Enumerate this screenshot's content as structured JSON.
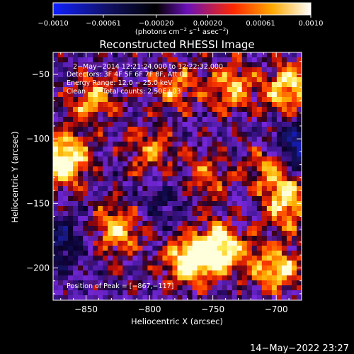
{
  "colorbar": {
    "ticks": [
      "−0.0010",
      "−0.00061",
      "−0.00020",
      "0.00020",
      "0.00061",
      "0.0010"
    ],
    "tick_values": [
      -0.001,
      -0.00061,
      -0.0002,
      0.0002,
      0.00061,
      0.001
    ],
    "units_prefix": "(photons cm",
    "units_exp1": "−2",
    "units_mid": " s",
    "units_exp2": "−1",
    "units_mid2": " asec",
    "units_exp3": "−2",
    "units_suffix": ")",
    "colors": [
      "#1020ff",
      "#000000",
      "#7a18c8",
      "#ff2800",
      "#ffb000",
      "#ffffc0"
    ]
  },
  "chart_data": {
    "type": "heatmap",
    "title": "Reconstructed RHESSI Image",
    "xlabel": "Heliocentric X (arcsec)",
    "ylabel": "Heliocentric Y (arcsec)",
    "xlim": [
      -876,
      -680
    ],
    "ylim": [
      -225,
      -33
    ],
    "x_ticks": [
      -850,
      -800,
      -750,
      -700
    ],
    "x_tick_labels": [
      "−850",
      "−800",
      "−750",
      "−700"
    ],
    "y_ticks": [
      -200,
      -150,
      -100,
      -50
    ],
    "y_tick_labels": [
      "−200",
      "−150",
      "−100",
      "−50"
    ],
    "color_range": [
      -0.001,
      0.001
    ],
    "hot_spots": [
      {
        "x": -867,
        "y": -117,
        "value": 0.001
      },
      {
        "x": -745,
        "y": -185,
        "value": 0.00095
      },
      {
        "x": -770,
        "y": -195,
        "value": 0.0008
      },
      {
        "x": -825,
        "y": -170,
        "value": 0.0007
      },
      {
        "x": -700,
        "y": -120,
        "value": 0.0008
      },
      {
        "x": -690,
        "y": -60,
        "value": 0.00075
      },
      {
        "x": -735,
        "y": -60,
        "value": 0.0006
      },
      {
        "x": -700,
        "y": -200,
        "value": 0.00075
      },
      {
        "x": -800,
        "y": -110,
        "value": 0.0005
      },
      {
        "x": -845,
        "y": -70,
        "value": 0.0006
      },
      {
        "x": -780,
        "y": -60,
        "value": 0.0005
      },
      {
        "x": -755,
        "y": -130,
        "value": 0.00045
      },
      {
        "x": -690,
        "y": -150,
        "value": 0.0007
      }
    ],
    "cold_spots": [
      {
        "x": -685,
        "y": -110,
        "value": -0.001
      },
      {
        "x": -870,
        "y": -180,
        "value": -0.0005
      },
      {
        "x": -790,
        "y": -150,
        "value": -0.0003
      }
    ]
  },
  "annotations": {
    "line1": "2−May−2014 12:21:24.000 to 12:22:32.000",
    "line2": "Detectors: 3F 4F 5F 6F 7F 8F, Att 0",
    "line3": "Energy Range: 12.0 − 25.0 keV",
    "line4a": "Clean",
    "line4b": "Total counts: 2.50E+03",
    "peak": "Position of Peak = [−867,−117]"
  },
  "footer": {
    "timestamp": "14−May−2022 23:27"
  }
}
